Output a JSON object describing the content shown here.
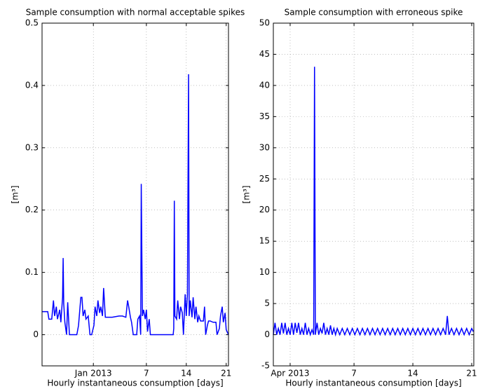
{
  "chart_data": [
    {
      "type": "line",
      "title": "Sample consumption with normal acceptable spikes",
      "xlabel": "Hourly instantaneous consumption [days]",
      "ylabel": "[m³]",
      "x": [
        -11.3,
        -10.3,
        -10.1,
        -9.6,
        -9.3,
        -9.1,
        -8.8,
        -8.6,
        -8.2,
        -8.0,
        -7.7,
        -7.6,
        -7.5,
        -7.3,
        -7.0,
        -6.8,
        -6.5,
        -5.2,
        -4.9,
        -4.5,
        -4.3,
        -4.1,
        -3.8,
        -3.6,
        -3.2,
        -2.9,
        -2.6,
        -2.2,
        -2.0,
        -1.7,
        -1.5,
        -1.2,
        -1.0,
        -0.7,
        -0.5,
        -0.2,
        1.0,
        2.2,
        2.8,
        3.4,
        3.7,
        3.9,
        4.2,
        4.4,
        4.7,
        5.3,
        5.5,
        5.8,
        6.0,
        6.1,
        6.3,
        6.5,
        6.8,
        7.0,
        7.2,
        7.5,
        7.7,
        8.4,
        10.2,
        11.7,
        11.8,
        11.9,
        12.0,
        12.3,
        12.5,
        12.8,
        13.0,
        13.3,
        13.5,
        13.8,
        14.0,
        14.2,
        14.4,
        14.5,
        14.7,
        15.0,
        15.2,
        15.5,
        15.7,
        16.0,
        16.2,
        16.5,
        17.0,
        17.2,
        17.4,
        17.7,
        17.9,
        18.2,
        18.7,
        19.2,
        19.4,
        19.8,
        20.0,
        20.3,
        20.5,
        20.8,
        21.0,
        21.4
      ],
      "series": [
        {
          "color": "#0000ff",
          "values": [
            0.037,
            0.037,
            0.025,
            0.025,
            0.055,
            0.03,
            0.045,
            0.025,
            0.04,
            0.02,
            0.06,
            0.123,
            0.05,
            0.02,
            0,
            0.052,
            0,
            0,
            0.015,
            0.06,
            0.06,
            0.03,
            0.04,
            0.025,
            0.03,
            0,
            0,
            0.015,
            0.045,
            0.03,
            0.055,
            0.035,
            0.045,
            0.03,
            0.075,
            0.028,
            0.028,
            0.03,
            0.03,
            0.028,
            0.055,
            0.045,
            0.028,
            0.02,
            0,
            0,
            0.025,
            0.03,
            0,
            0.242,
            0.03,
            0.04,
            0.025,
            0.04,
            0.005,
            0.025,
            0,
            0,
            0,
            0,
            0.01,
            0.215,
            0.03,
            0.025,
            0.055,
            0.025,
            0.045,
            0.035,
            0,
            0.065,
            0.03,
            0.065,
            0.418,
            0.03,
            0.055,
            0.028,
            0.06,
            0.025,
            0.045,
            0.02,
            0.03,
            0.022,
            0.022,
            0.045,
            0,
            0.015,
            0.022,
            0.022,
            0.02,
            0.02,
            0,
            0.01,
            0.03,
            0.045,
            0.02,
            0.035,
            0.008,
            0
          ]
        }
      ],
      "xlim": [
        -11.3,
        21.4
      ],
      "xticks": [
        {
          "value": -2.3,
          "label": "Jan 2013"
        },
        7,
        14,
        21
      ],
      "ylim": [
        -0.05,
        0.5
      ],
      "yticks": [
        0,
        0.1,
        0.2,
        0.3,
        0.4,
        0.5
      ],
      "grid": true
    },
    {
      "type": "line",
      "title": "Sample consumption with erroneous spike",
      "xlabel": "Hourly instantaneous consumption [days]",
      "ylabel": "[m³]",
      "x": [
        -2.6,
        -2.4,
        -2.2,
        -2.0,
        -1.8,
        -1.6,
        -1.4,
        -1.2,
        -1.0,
        -0.8,
        -0.6,
        -0.4,
        -0.2,
        0.0,
        0.2,
        0.4,
        0.6,
        0.8,
        1.0,
        1.2,
        1.4,
        1.6,
        1.8,
        2.0,
        2.2,
        2.3,
        2.4,
        2.6,
        2.8,
        3.0,
        3.2,
        3.4,
        3.6,
        3.8,
        4.0,
        4.2,
        4.4,
        4.6,
        4.8,
        5.0,
        5.3,
        5.6,
        5.9,
        6.2,
        6.5,
        6.8,
        7.1,
        7.4,
        7.7,
        8.0,
        8.3,
        8.6,
        8.9,
        9.2,
        9.5,
        9.8,
        10.1,
        10.4,
        10.7,
        11.0,
        11.3,
        11.6,
        11.9,
        12.2,
        12.5,
        12.8,
        13.1,
        13.4,
        13.7,
        14.0,
        14.3,
        14.6,
        14.9,
        15.2,
        15.5,
        15.8,
        16.1,
        16.4,
        16.7,
        17.0,
        17.3,
        17.6,
        17.9,
        18.1,
        18.3,
        18.6,
        18.9,
        19.2,
        19.5,
        19.8,
        20.1,
        20.4,
        20.7,
        21.0,
        21.2
      ],
      "series": [
        {
          "color": "#0000ff",
          "values": [
            0,
            1.9,
            0,
            1.0,
            0,
            1.9,
            0.2,
            1.9,
            0,
            1.0,
            0,
            1.9,
            0,
            1.9,
            0.3,
            1.9,
            0,
            1.0,
            0,
            1.9,
            0,
            1.0,
            0,
            0.8,
            0,
            43,
            0,
            1.9,
            0,
            1.0,
            0.2,
            1.9,
            0,
            1.0,
            0,
            1.5,
            0,
            1.0,
            0,
            1.0,
            0,
            1.0,
            0,
            1.0,
            0,
            1.0,
            0,
            1.0,
            0,
            1.0,
            0,
            1.0,
            0,
            1.0,
            0,
            1.0,
            0,
            1.0,
            0,
            1.0,
            0,
            1.0,
            0,
            1.0,
            0,
            1.0,
            0,
            1.0,
            0,
            1.0,
            0,
            1.0,
            0,
            1.0,
            0,
            1.0,
            0,
            1.0,
            0,
            1.0,
            0,
            1.0,
            0,
            3.0,
            0,
            1.0,
            0,
            1.0,
            0,
            1.0,
            0,
            1.0,
            0,
            1.0,
            0.5
          ]
        }
      ],
      "xlim": [
        -2.6,
        21.25
      ],
      "xticks": [
        {
          "value": -0.6,
          "label": "Apr 2013"
        },
        7,
        14,
        21
      ],
      "ylim": [
        -5,
        50
      ],
      "yticks": [
        -5,
        0,
        5,
        10,
        15,
        20,
        25,
        30,
        35,
        40,
        45,
        50
      ],
      "grid": true
    }
  ]
}
